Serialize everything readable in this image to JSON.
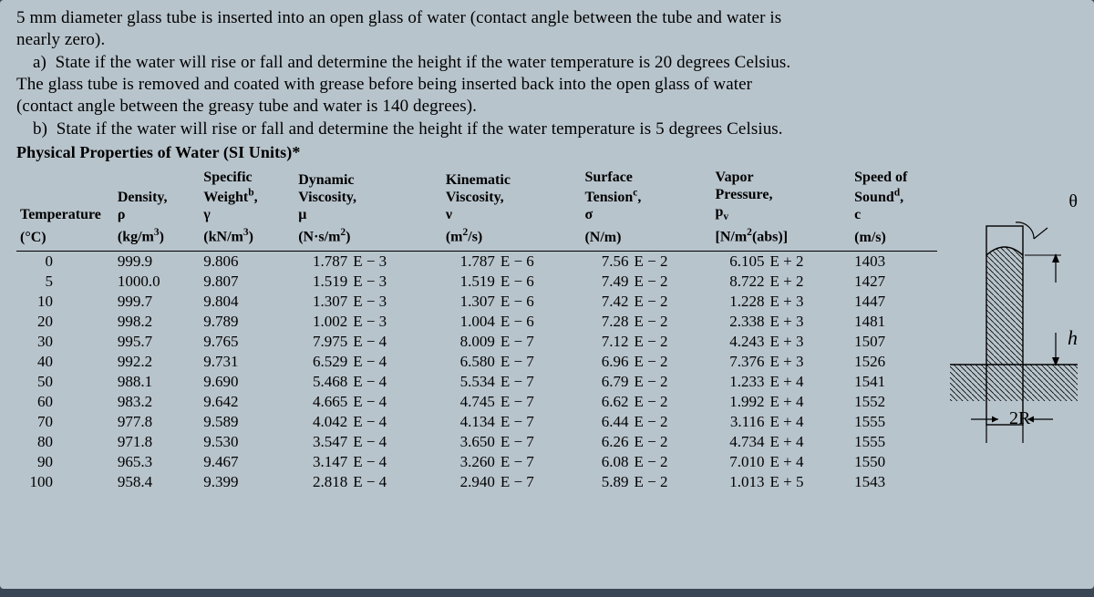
{
  "prose": {
    "l1": "5 mm diameter glass tube is inserted into an open glass of water (contact angle between the tube and water is",
    "l2": "nearly zero).",
    "l3": "a)  State if the water will rise or fall and determine the height if the water temperature is 20 degrees Celsius.",
    "l4": "The glass tube is removed and coated with grease before being inserted back into the open glass of water",
    "l5": "(contact angle between the greasy tube and water is 140 degrees).",
    "l6": "b)  State if the water will rise or fall and determine the height if the water temperature is 5 degrees Celsius.",
    "title": "Physical Properties of Water (SI Units)*"
  },
  "hdr": {
    "temp1": "Temperature",
    "temp2": "(°C)",
    "rho0": "Density,",
    "rho1": "ρ",
    "rho2_html": "(kg/m<span class=\"sup\">3</span>)",
    "gam0_html": "Specific",
    "gam0b_html": "Weight<span class=\"sup\">b</span>,",
    "gam1": "γ",
    "gam2_html": "(kN/m<span class=\"sup\">3</span>)",
    "mu0": "Dynamic",
    "mu0b": "Viscosity,",
    "mu1": "μ",
    "mu2_html": "(N·s/m<span class=\"sup\">2</span>)",
    "nu0": "Kinematic",
    "nu0b": "Viscosity,",
    "nu1": "ν",
    "nu2_html": "(m<span class=\"sup\">2</span>/s)",
    "sig0_html": "Surface",
    "sig0b_html": "Tension<span class=\"sup\">c</span>,",
    "sig1": "σ",
    "sig2": "(N/m)",
    "pv0": "Vapor",
    "pv0b": "Pressure,",
    "pv1_html": "p<span class=\"sub\">v</span>",
    "pv2_html": "[N/m<span class=\"sup\">2</span>(abs)]",
    "c0": "Speed of",
    "c0b_html": "Sound<span class=\"sup\">d</span>,",
    "c1": "c",
    "c2": "(m/s)"
  },
  "rows": [
    {
      "T": "0",
      "rho": "999.9",
      "gam": "9.806",
      "muN": "1.787",
      "muE": "E − 3",
      "nuN": "1.787",
      "nuE": "E − 6",
      "sigN": "7.56",
      "sigE": "E − 2",
      "pvN": "6.105",
      "pvE": "E + 2",
      "c": "1403"
    },
    {
      "T": "5",
      "rho": "1000.0",
      "gam": "9.807",
      "muN": "1.519",
      "muE": "E − 3",
      "nuN": "1.519",
      "nuE": "E − 6",
      "sigN": "7.49",
      "sigE": "E − 2",
      "pvN": "8.722",
      "pvE": "E + 2",
      "c": "1427"
    },
    {
      "T": "10",
      "rho": "999.7",
      "gam": "9.804",
      "muN": "1.307",
      "muE": "E − 3",
      "nuN": "1.307",
      "nuE": "E − 6",
      "sigN": "7.42",
      "sigE": "E − 2",
      "pvN": "1.228",
      "pvE": "E + 3",
      "c": "1447"
    },
    {
      "T": "20",
      "rho": "998.2",
      "gam": "9.789",
      "muN": "1.002",
      "muE": "E − 3",
      "nuN": "1.004",
      "nuE": "E − 6",
      "sigN": "7.28",
      "sigE": "E − 2",
      "pvN": "2.338",
      "pvE": "E + 3",
      "c": "1481"
    },
    {
      "T": "30",
      "rho": "995.7",
      "gam": "9.765",
      "muN": "7.975",
      "muE": "E − 4",
      "nuN": "8.009",
      "nuE": "E − 7",
      "sigN": "7.12",
      "sigE": "E − 2",
      "pvN": "4.243",
      "pvE": "E + 3",
      "c": "1507"
    },
    {
      "T": "40",
      "rho": "992.2",
      "gam": "9.731",
      "muN": "6.529",
      "muE": "E − 4",
      "nuN": "6.580",
      "nuE": "E − 7",
      "sigN": "6.96",
      "sigE": "E − 2",
      "pvN": "7.376",
      "pvE": "E + 3",
      "c": "1526"
    },
    {
      "T": "50",
      "rho": "988.1",
      "gam": "9.690",
      "muN": "5.468",
      "muE": "E − 4",
      "nuN": "5.534",
      "nuE": "E − 7",
      "sigN": "6.79",
      "sigE": "E − 2",
      "pvN": "1.233",
      "pvE": "E + 4",
      "c": "1541"
    },
    {
      "T": "60",
      "rho": "983.2",
      "gam": "9.642",
      "muN": "4.665",
      "muE": "E − 4",
      "nuN": "4.745",
      "nuE": "E − 7",
      "sigN": "6.62",
      "sigE": "E − 2",
      "pvN": "1.992",
      "pvE": "E + 4",
      "c": "1552"
    },
    {
      "T": "70",
      "rho": "977.8",
      "gam": "9.589",
      "muN": "4.042",
      "muE": "E − 4",
      "nuN": "4.134",
      "nuE": "E − 7",
      "sigN": "6.44",
      "sigE": "E − 2",
      "pvN": "3.116",
      "pvE": "E + 4",
      "c": "1555"
    },
    {
      "T": "80",
      "rho": "971.8",
      "gam": "9.530",
      "muN": "3.547",
      "muE": "E − 4",
      "nuN": "3.650",
      "nuE": "E − 7",
      "sigN": "6.26",
      "sigE": "E − 2",
      "pvN": "4.734",
      "pvE": "E + 4",
      "c": "1555"
    },
    {
      "T": "90",
      "rho": "965.3",
      "gam": "9.467",
      "muN": "3.147",
      "muE": "E − 4",
      "nuN": "3.260",
      "nuE": "E − 7",
      "sigN": "6.08",
      "sigE": "E − 2",
      "pvN": "7.010",
      "pvE": "E + 4",
      "c": "1550"
    },
    {
      "T": "100",
      "rho": "958.4",
      "gam": "9.399",
      "muN": "2.818",
      "muE": "E − 4",
      "nuN": "2.940",
      "nuE": "E − 7",
      "sigN": "5.89",
      "sigE": "E − 2",
      "pvN": "1.013",
      "pvE": "E + 5",
      "c": "1543"
    }
  ],
  "diagram": {
    "theta": "θ",
    "h": "h",
    "twoR": "2R",
    "colors": {
      "line": "#000000",
      "water_hatch": "#000000"
    }
  }
}
